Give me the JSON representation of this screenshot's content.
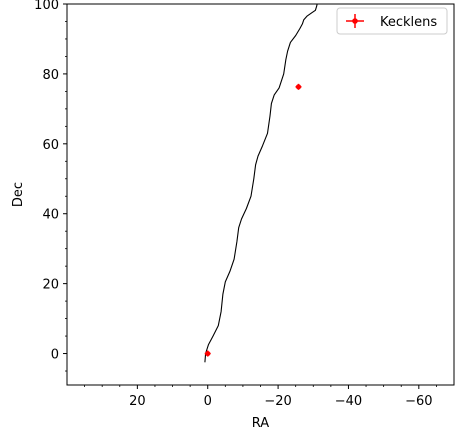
{
  "chart_data": {
    "type": "line",
    "title": "",
    "xlabel": "RA",
    "ylabel": "Dec",
    "xlim": [
      40,
      -70
    ],
    "ylim": [
      -9,
      100
    ],
    "x_ticks": [
      20,
      0,
      -20,
      -40,
      -60
    ],
    "x_tick_labels": [
      "20",
      "0",
      "−20",
      "−40",
      "−60"
    ],
    "y_ticks": [
      0,
      20,
      40,
      60,
      80,
      100
    ],
    "y_tick_labels": [
      "0",
      "20",
      "40",
      "60",
      "80",
      "100"
    ],
    "grid": false,
    "legend_position": "top-right",
    "line": {
      "color": "#000000",
      "x": [
        0.8,
        0.6,
        -0.2,
        -1.5,
        -3.0,
        -3.8,
        -4.3,
        -5.0,
        -6.3,
        -7.5,
        -8.3,
        -8.8,
        -9.6,
        -11.0,
        -12.3,
        -13.1,
        -13.6,
        -14.3,
        -15.6,
        -17.0,
        -17.7,
        -18.1,
        -18.9,
        -20.3,
        -21.6,
        -22.2,
        -22.7,
        -23.5,
        -25.0,
        -26.2,
        -26.9,
        -27.3,
        -28.2,
        -29.6,
        -30.6,
        -31.0,
        -31.1
      ],
      "y": [
        -2.5,
        0,
        2.5,
        5.0,
        8.0,
        12.0,
        17.0,
        20.5,
        23.5,
        27.0,
        32.0,
        36.0,
        38.5,
        41.5,
        45.0,
        50.0,
        54.0,
        56.5,
        59.5,
        63.0,
        68.0,
        71.5,
        74.0,
        76.0,
        80.0,
        84.0,
        86.5,
        89.0,
        91.0,
        93.0,
        94.3,
        95.5,
        96.5,
        97.5,
        98.2,
        99.5,
        100.0
      ]
    },
    "series": [
      {
        "name": "Kecklens",
        "color": "#ff0000",
        "marker": "errorbar",
        "points": [
          {
            "x": 0.0,
            "y": 0.0
          },
          {
            "x": -25.8,
            "y": 76.3
          }
        ]
      }
    ]
  }
}
